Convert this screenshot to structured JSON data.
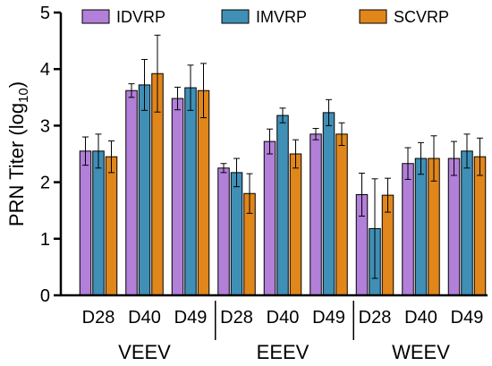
{
  "chart_data": {
    "type": "bar",
    "ylabel": "PRN Titer (log",
    "ylabel_subscript": "10",
    "ylabel_close": ")",
    "ylim": [
      0,
      5
    ],
    "yticks": [
      "0",
      "1",
      "2",
      "3",
      "4",
      "5"
    ],
    "groups": [
      "VEEV",
      "EEEV",
      "WEEV"
    ],
    "categories": [
      "D28",
      "D40",
      "D49",
      "D28",
      "D40",
      "D49",
      "D28",
      "D40",
      "D49"
    ],
    "legend_position": "top",
    "series": [
      {
        "name": "IDVRP",
        "color": "#b27fd9",
        "values": [
          2.55,
          3.62,
          3.48,
          2.25,
          2.72,
          2.85,
          1.78,
          2.33,
          2.42
        ],
        "err": [
          0.25,
          0.12,
          0.2,
          0.08,
          0.22,
          0.1,
          0.38,
          0.28,
          0.3
        ]
      },
      {
        "name": "IMVRP",
        "color": "#3f8fb6",
        "values": [
          2.55,
          3.72,
          3.67,
          2.17,
          3.18,
          3.23,
          1.18,
          2.42,
          2.55
        ],
        "err": [
          0.3,
          0.45,
          0.4,
          0.25,
          0.13,
          0.23,
          0.88,
          0.28,
          0.3
        ]
      },
      {
        "name": "SCVRP",
        "color": "#e0861a",
        "values": [
          2.45,
          3.92,
          3.62,
          1.8,
          2.5,
          2.85,
          1.77,
          2.42,
          2.45
        ],
        "err": [
          0.28,
          0.68,
          0.48,
          0.35,
          0.25,
          0.2,
          0.3,
          0.4,
          0.33
        ]
      }
    ]
  }
}
